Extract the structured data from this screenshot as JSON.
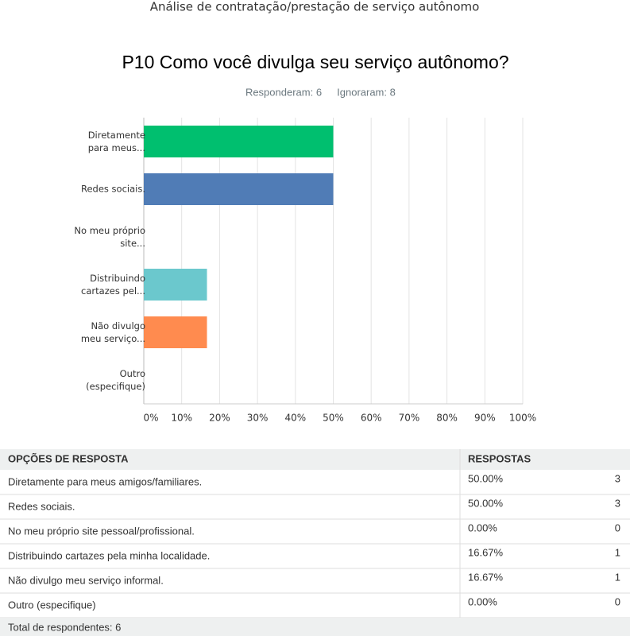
{
  "header": {
    "title": "Análise de contratação/prestação de serviço autônomo"
  },
  "chart_data": {
    "type": "bar",
    "orientation": "horizontal",
    "title": "P10 Como você divulga seu serviço autônomo?",
    "answered": "Responderam: 6",
    "skipped": "Ignoraram: 8",
    "categories": [
      "Diretamente\npara meus...",
      "Redes sociais.",
      "No meu próprio\nsite...",
      "Distribuindo\ncartazes pel...",
      "Não divulgo\nmeu serviço...",
      "Outro\n(especifique)"
    ],
    "values": [
      50,
      50,
      0,
      16.67,
      16.67,
      0
    ],
    "colors": [
      "#00bf6f",
      "#507cb6",
      "#f9be00",
      "#6bc8cd",
      "#ff8b4f",
      "#7d5ea0"
    ],
    "xlim": [
      0,
      100
    ],
    "xticks": [
      {
        "value": 0,
        "label": "0%"
      },
      {
        "value": 10,
        "label": "10%"
      },
      {
        "value": 20,
        "label": "20%"
      },
      {
        "value": 30,
        "label": "30%"
      },
      {
        "value": 40,
        "label": "40%"
      },
      {
        "value": 50,
        "label": "50%"
      },
      {
        "value": 60,
        "label": "60%"
      },
      {
        "value": 70,
        "label": "70%"
      },
      {
        "value": 80,
        "label": "80%"
      },
      {
        "value": 90,
        "label": "90%"
      },
      {
        "value": 100,
        "label": "100%"
      }
    ],
    "grid": true
  },
  "table": {
    "headers": [
      "OPÇÕES DE RESPOSTA",
      "RESPOSTAS"
    ],
    "rows": [
      [
        "Diretamente para meus amigos/familiares.",
        "50.00%",
        "3"
      ],
      [
        "Redes sociais.",
        "50.00%",
        "3"
      ],
      [
        "No meu próprio site pessoal/profissional.",
        "0.00%",
        "0"
      ],
      [
        "Distribuindo cartazes pela minha localidade.",
        "16.67%",
        "1"
      ],
      [
        "Não divulgo meu serviço informal.",
        "16.67%",
        "1"
      ],
      [
        "Outro (especifique)",
        "0.00%",
        "0"
      ]
    ],
    "footer": "Total de respondentes: 6"
  }
}
